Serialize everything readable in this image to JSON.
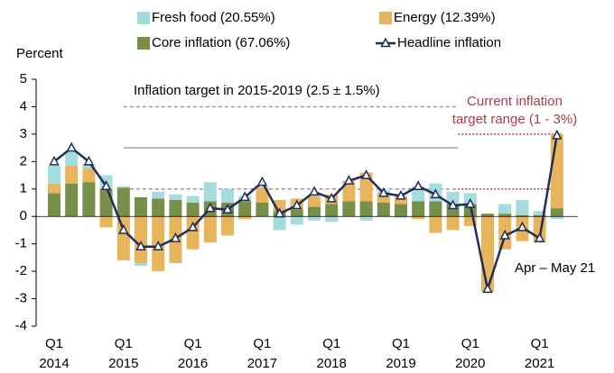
{
  "chart_data": {
    "type": "stacked_bar_line",
    "y_label": "Percent",
    "categories": [
      "Q1 2014",
      null,
      null,
      null,
      "Q1 2015",
      null,
      null,
      null,
      "Q1 2016",
      null,
      null,
      null,
      "Q1 2017",
      null,
      null,
      null,
      "Q1 2018",
      null,
      null,
      null,
      "Q1 2019",
      null,
      null,
      null,
      "Q1 2020",
      null,
      null,
      null,
      "Q1 2021",
      null
    ],
    "series": [
      {
        "name": "Core inflation (67.06%)",
        "color": "#778f4a",
        "kind": "bar",
        "values": [
          0.85,
          1.2,
          1.25,
          1.0,
          1.05,
          0.7,
          0.65,
          0.6,
          0.5,
          0.55,
          0.5,
          0.55,
          0.5,
          0.2,
          0.25,
          0.35,
          0.45,
          0.55,
          0.55,
          0.5,
          0.45,
          0.55,
          0.55,
          0.45,
          0.45,
          0.1,
          0.1,
          0.05,
          0.05,
          0.3
        ]
      },
      {
        "name": "Energy (12.39%)",
        "color": "#e8b45c",
        "kind": "bar",
        "values": [
          0.35,
          0.65,
          0.5,
          -0.4,
          -1.6,
          -1.7,
          -2.0,
          -1.7,
          -1.2,
          -0.95,
          -0.7,
          -0.1,
          0.55,
          0.4,
          0.4,
          0.4,
          0.35,
          0.75,
          1.05,
          0.35,
          0.3,
          -0.1,
          -0.6,
          -0.5,
          -0.35,
          -2.75,
          -1.2,
          -0.9,
          -0.95,
          2.7
        ]
      },
      {
        "name": "Fresh food (20.55%)",
        "color": "#a3dbde",
        "kind": "bar",
        "values": [
          0.65,
          0.5,
          0.15,
          0.5,
          0.05,
          -0.1,
          0.25,
          0.2,
          0.25,
          0.7,
          0.5,
          0.2,
          0.05,
          -0.5,
          -0.3,
          -0.15,
          -0.2,
          0.0,
          -0.15,
          0.1,
          -0.05,
          0.55,
          0.65,
          0.45,
          0.4,
          0.0,
          0.35,
          0.55,
          0.15,
          -0.1
        ]
      },
      {
        "name": "Headline inflation",
        "color": "#1f2d5a",
        "kind": "line",
        "values": [
          2.0,
          2.5,
          2.0,
          1.1,
          -0.5,
          -1.1,
          -1.1,
          -0.8,
          -0.4,
          0.3,
          0.25,
          0.7,
          1.25,
          0.1,
          0.4,
          0.9,
          0.65,
          1.3,
          1.5,
          0.85,
          0.75,
          1.1,
          0.8,
          0.4,
          0.45,
          -2.65,
          -0.7,
          -0.4,
          -0.8,
          2.95
        ]
      }
    ],
    "legend_order": [
      2,
      1,
      0,
      3
    ],
    "target_band": {
      "label": "Inflation target in 2015-2019 (2.5 ± 1.5%)",
      "low": 1,
      "mid": 2.5,
      "high": 4
    },
    "current_band": {
      "label": "Current inflation target range (1 - 3%)",
      "low": 1,
      "high": 3
    },
    "annotation": "Apr – May 21",
    "ylim": [
      -4,
      5
    ],
    "yticks": [
      -4,
      -3,
      -2,
      -1,
      0,
      1,
      2,
      3,
      4,
      5
    ]
  }
}
